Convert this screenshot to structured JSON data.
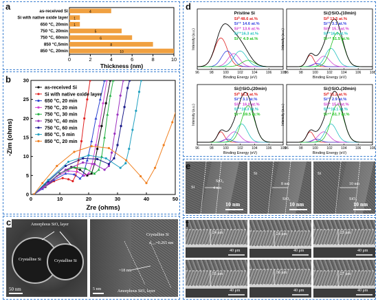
{
  "panel_labels": {
    "a": "a",
    "b": "b",
    "c": "c",
    "d": "d",
    "e": "e",
    "f": "f"
  },
  "colors": {
    "bar": "#f0a040",
    "frame": "#3a7fd0",
    "tem_dark": "#2a2a2a"
  },
  "chart_data": [
    {
      "type": "bar",
      "orientation": "horizontal",
      "categories": [
        "as-received Si",
        "Si with native oxide layer",
        "650 °C, 20min",
        "750 °C, 20min",
        "750 °C, 60min",
        "850 °C,5min",
        "850 °C, 20min"
      ],
      "values": [
        4,
        1,
        1,
        5,
        6,
        8,
        10
      ],
      "data_labels": [
        "4",
        "1",
        "1",
        "5",
        "6",
        "8",
        "10"
      ],
      "xlabel": "Thickness (nm)",
      "xlim": [
        0,
        10
      ],
      "xticks": [
        "0",
        "2",
        "4",
        "6",
        "8",
        "10"
      ],
      "grid": false
    },
    {
      "type": "line",
      "xlabel": "Zre (ohms)",
      "ylabel": "-Zim (ohms)",
      "xlim": [
        0,
        50
      ],
      "ylim": [
        0,
        30
      ],
      "xticks": [
        "0",
        "10",
        "20",
        "30",
        "40",
        "50"
      ],
      "yticks": [
        "0",
        "5",
        "10",
        "15",
        "20",
        "25",
        "30"
      ],
      "legend_position": "top-left",
      "series": [
        {
          "name": "as-received Si",
          "color": "#111111",
          "marker": "square",
          "points": [
            [
              1,
              0
            ],
            [
              5,
              2
            ],
            [
              10,
              5.5
            ],
            [
              14,
              7.2
            ],
            [
              17,
              6.5
            ],
            [
              19.5,
              5
            ],
            [
              21,
              5.5
            ],
            [
              22,
              8
            ],
            [
              23,
              12
            ],
            [
              24.5,
              18
            ],
            [
              26,
              24
            ],
            [
              27.5,
              30
            ]
          ]
        },
        {
          "name": "Si with native oxide layer",
          "color": "#e02020",
          "marker": "circle",
          "points": [
            [
              1,
              0
            ],
            [
              4,
              1.6
            ],
            [
              8,
              3.5
            ],
            [
              11,
              4.3
            ],
            [
              13,
              4
            ],
            [
              14.5,
              3.5
            ],
            [
              15.5,
              5
            ],
            [
              16.5,
              9
            ],
            [
              17.5,
              14
            ],
            [
              18.5,
              20
            ],
            [
              19.5,
              25
            ],
            [
              20.5,
              30
            ]
          ]
        },
        {
          "name": "650 °C, 20 min",
          "color": "#2a40d0",
          "marker": "triangle",
          "points": [
            [
              1,
              0
            ],
            [
              4,
              1.5
            ],
            [
              8,
              3.8
            ],
            [
              12,
              5.5
            ],
            [
              15,
              5.3
            ],
            [
              17,
              4.2
            ],
            [
              18,
              5
            ],
            [
              19.5,
              9
            ],
            [
              21,
              14
            ],
            [
              22.5,
              20
            ],
            [
              24,
              25
            ],
            [
              25.5,
              30
            ]
          ]
        },
        {
          "name": "750 °C, 20 min",
          "color": "#d040d0",
          "marker": "diamond",
          "points": [
            [
              1,
              0
            ],
            [
              5,
              2.2
            ],
            [
              9,
              4.8
            ],
            [
              13,
              6.2
            ],
            [
              16,
              6
            ],
            [
              18.5,
              5
            ],
            [
              20,
              5.5
            ],
            [
              21.2,
              8
            ],
            [
              22.5,
              13
            ],
            [
              23.7,
              18
            ],
            [
              25,
              24
            ],
            [
              26.3,
              30
            ]
          ]
        },
        {
          "name": "750 °C, 30 min",
          "color": "#20b040",
          "marker": "triangle",
          "points": [
            [
              1,
              0
            ],
            [
              5,
              2.5
            ],
            [
              10,
              5.5
            ],
            [
              15,
              7.2
            ],
            [
              19,
              6.8
            ],
            [
              22,
              5.5
            ],
            [
              23.5,
              6.5
            ],
            [
              24.5,
              10
            ],
            [
              25.5,
              15
            ],
            [
              26.5,
              21
            ],
            [
              27.5,
              26
            ],
            [
              28.5,
              30
            ]
          ]
        },
        {
          "name": "750 °C, 40 min",
          "color": "#9a30c0",
          "marker": "star",
          "points": [
            [
              1,
              0
            ],
            [
              6,
              3
            ],
            [
              12,
              6.5
            ],
            [
              18,
              8.4
            ],
            [
              22,
              8
            ],
            [
              25.5,
              6.5
            ],
            [
              27,
              7.5
            ],
            [
              28,
              11
            ],
            [
              29,
              16
            ],
            [
              30,
              21
            ],
            [
              31,
              26
            ],
            [
              32,
              30
            ]
          ]
        },
        {
          "name": "750 °C, 60 min",
          "color": "#1a1a8a",
          "marker": "square",
          "points": [
            [
              1,
              0
            ],
            [
              6,
              3.5
            ],
            [
              12,
              7.5
            ],
            [
              18,
              9.5
            ],
            [
              23,
              9.3
            ],
            [
              27,
              8
            ],
            [
              28.8,
              9.5
            ],
            [
              30,
              13
            ],
            [
              31.2,
              18
            ],
            [
              32.4,
              23
            ],
            [
              33.5,
              28
            ],
            [
              34.2,
              30
            ]
          ]
        },
        {
          "name": "850 °C, 5 min",
          "color": "#20a0c0",
          "marker": "circle",
          "points": [
            [
              1,
              0
            ],
            [
              6,
              3.8
            ],
            [
              13,
              8.6
            ],
            [
              20,
              10.3
            ],
            [
              26,
              9.5
            ],
            [
              31,
              7
            ],
            [
              32.8,
              8.2
            ],
            [
              34,
              12
            ],
            [
              35.2,
              17
            ],
            [
              36.4,
              22
            ],
            [
              37.5,
              27
            ],
            [
              38.2,
              30
            ]
          ]
        },
        {
          "name": "850 °C, 20 min",
          "color": "#f08020",
          "marker": "circle",
          "points": [
            [
              1,
              0
            ],
            [
              4,
              3
            ],
            [
              9,
              7.5
            ],
            [
              15,
              11.2
            ],
            [
              21,
              12.7
            ],
            [
              27,
              12.2
            ],
            [
              33,
              9
            ],
            [
              38,
              4.8
            ],
            [
              40,
              3
            ],
            [
              43,
              7
            ],
            [
              46,
              13
            ],
            [
              49,
              19
            ],
            [
              51,
              24
            ]
          ]
        }
      ]
    },
    {
      "type": "line",
      "subplots": [
        {
          "title": "Pristine Si",
          "xlabel": "Binding Energy (eV)",
          "ylabel": "Intensity (a.u.)",
          "xticks": [
            "96",
            "98",
            "100",
            "102",
            "104",
            "106",
            "108"
          ],
          "components": [
            {
              "label": "Si⁰ 48.6 at.%",
              "color": "#e02020"
            },
            {
              "label": "Si¹⁺ 14.6 at.%",
              "color": "#3040e0"
            },
            {
              "label": "Si²⁺ 13.6 at.%",
              "color": "#d040d0"
            },
            {
              "label": "Si³⁺16.3 at.%",
              "color": "#20c0c0"
            },
            {
              "label": "Si⁴⁺ 4.9 at.%",
              "color": "#20c020"
            }
          ]
        },
        {
          "title": "Si@SiO₂(10min)",
          "xlabel": "Binding Energy (eV)",
          "ylabel": "Intensity (a.u.)",
          "xticks": [
            "96",
            "98",
            "100",
            "102",
            "104",
            "106",
            "108"
          ],
          "components": [
            {
              "label": "Si⁰ 13.5 at.%",
              "color": "#e02020"
            },
            {
              "label": "Si¹⁺ 3.1 at.%",
              "color": "#3040e0"
            },
            {
              "label": "Si²⁺ 15.7 at.%",
              "color": "#d040d0"
            },
            {
              "label": "Si³⁺16.3 at.%",
              "color": "#20c0c0"
            },
            {
              "label": "Si⁴⁺ 51.5 at.%",
              "color": "#20c020"
            }
          ]
        },
        {
          "title": "Si@SiO₂(20min)",
          "xlabel": "Binding Energy (eV)",
          "ylabel": "Intensity (a.u.)",
          "xticks": [
            "96",
            "98",
            "100",
            "102",
            "104",
            "106",
            "108"
          ],
          "components": [
            {
              "label": "Si⁰ 12.2 at.%",
              "color": "#e02020"
            },
            {
              "label": "Si¹⁺ 3.1 at.%",
              "color": "#3040e0"
            },
            {
              "label": "Si²⁺ 16.0 at.%",
              "color": "#d040d0"
            },
            {
              "label": "Si³⁺16.3 at.%",
              "color": "#20c0c0"
            },
            {
              "label": "Si⁴⁺ 59.5 at.%",
              "color": "#20c020"
            }
          ]
        },
        {
          "title": "Si@SiO₂(30min)",
          "xlabel": "Binding Energy (eV)",
          "ylabel": "Intensity (a.u.)",
          "xticks": [
            "96",
            "98",
            "100",
            "102",
            "104",
            "106",
            "108"
          ],
          "components": [
            {
              "label": "Si⁰ 11.2 at.%",
              "color": "#e02020"
            },
            {
              "label": "Si¹⁺ 2.9 at.%",
              "color": "#3040e0"
            },
            {
              "label": "Si²⁺ 15.9 at.%",
              "color": "#d040d0"
            },
            {
              "label": "Si³⁺16.1 at.%",
              "color": "#20c0c0"
            },
            {
              "label": "Si⁴⁺ 61.7 at.%",
              "color": "#20c020"
            }
          ]
        }
      ]
    }
  ],
  "panel_c": {
    "left": {
      "amorphous": "Amorphous SiO₂ layer",
      "cryst1": "Crystalline Si",
      "cryst2": "Crystalline Si",
      "scale": "50 nm"
    },
    "right": {
      "cryst": "Crystalline Si",
      "dspace": "d₁₁₁=0.265 nm",
      "thick": "~18 nm",
      "amorphous": "Amorphous SiO₂ layer",
      "scale": "5 nm"
    }
  },
  "panel_e": [
    {
      "si": "Si",
      "sio2": "SiO₂",
      "thick": "4 nm",
      "scale": "10 nm"
    },
    {
      "si": "Si",
      "sio2": "SiO₂",
      "thick": "8 nm",
      "scale": "10 nm"
    },
    {
      "si": "Si",
      "sio2": "SiO₂",
      "thick": "10 nm",
      "scale": "10 nm"
    }
  ],
  "panel_f": [
    {
      "thick": "24 μm",
      "scale": "40 μm"
    },
    {
      "thick": "24 μm",
      "scale": "40 μm"
    },
    {
      "thick": "23 μm",
      "scale": "40 μm"
    },
    {
      "thick": "35 μm",
      "scale": "40 μm"
    },
    {
      "thick": "36 μm",
      "scale": "40 μm"
    },
    {
      "thick": "27 μm",
      "scale": "40 μm"
    }
  ]
}
